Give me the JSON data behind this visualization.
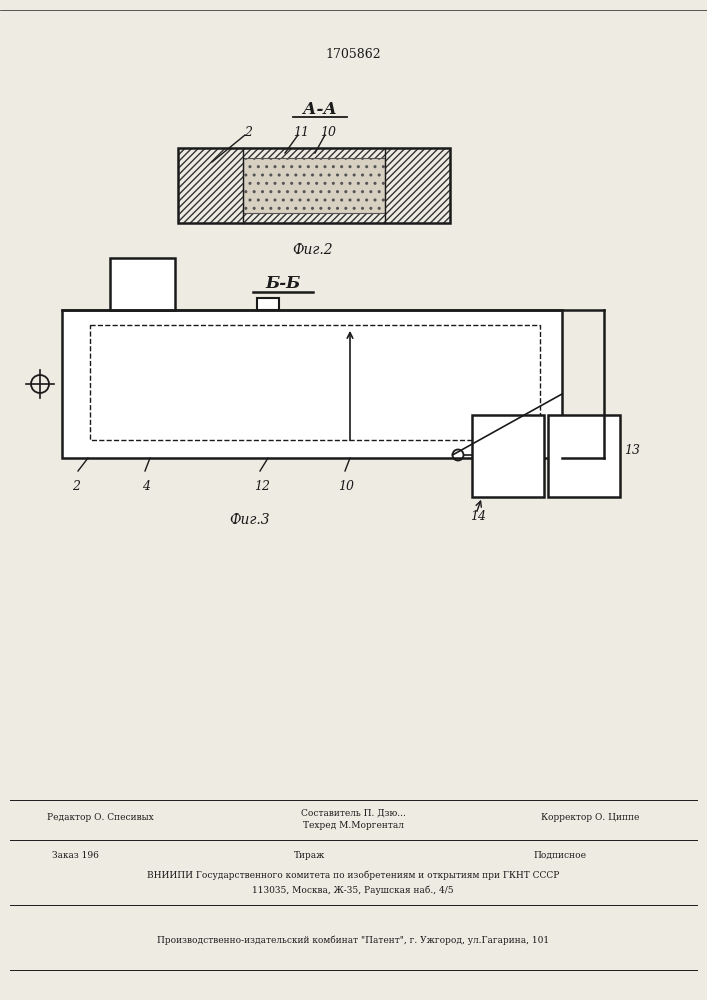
{
  "patent_number": "1705862",
  "fig2_label": "А-А",
  "fig2_caption": "Фиг.2",
  "fig3_label": "Б-Б",
  "fig3_caption": "Фиг.3",
  "footer_line1": "Редактор О. Спесивых",
  "footer_line2a": "Составитель П. Дзю...",
  "footer_line2b": "Техред М.Моргентал",
  "footer_line3": "Корректор О. Циппе",
  "footer_line4": "Заказ 196",
  "footer_line5": "Тираж",
  "footer_line6": "Подписное",
  "footer_line7": "ВНИИПИ Государственного комитета по изобретениям и открытиям при ГКНТ СССР",
  "footer_line8": "113035, Москва, Ж-35, Раушская наб., 4/5",
  "footer_line9": "Производственно-издательский комбинат \"Патент\", г. Ужгород, ул.Гагарина, 101",
  "bg_color": "#eeebe3",
  "line_color": "#1a1a1a"
}
